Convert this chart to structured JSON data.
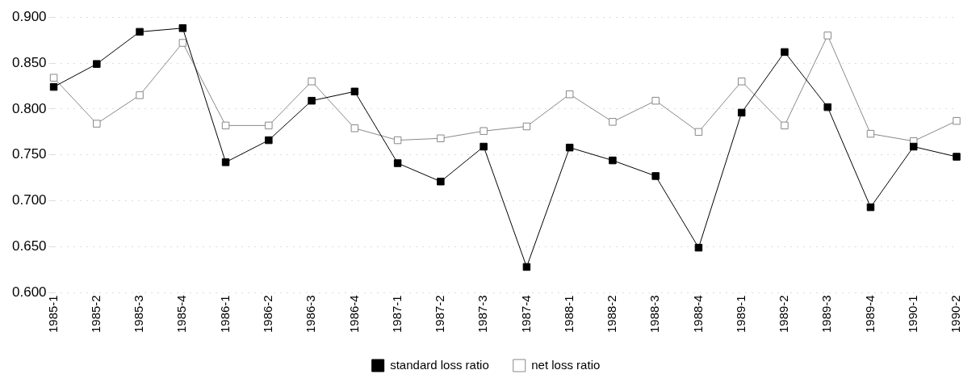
{
  "chart_data": {
    "type": "line",
    "categories": [
      "1985-1",
      "1985-2",
      "1985-3",
      "1985-4",
      "1986-1",
      "1986-2",
      "1986-3",
      "1986-4",
      "1987-1",
      "1987-2",
      "1987-3",
      "1987-4",
      "1988-1",
      "1988-2",
      "1988-3",
      "1988-4",
      "1989-1",
      "1989-2",
      "1989-3",
      "1989-4",
      "1990-1",
      "1990-2"
    ],
    "series": [
      {
        "name": "standard loss ratio",
        "color": "#000000",
        "values": [
          0.824,
          0.849,
          0.884,
          0.888,
          0.742,
          0.766,
          0.809,
          0.819,
          0.741,
          0.721,
          0.759,
          0.628,
          0.758,
          0.744,
          0.727,
          0.649,
          0.796,
          0.862,
          0.802,
          0.693,
          0.759,
          0.748
        ]
      },
      {
        "name": "net loss ratio",
        "color": "#888888",
        "values": [
          0.834,
          0.784,
          0.815,
          0.872,
          0.782,
          0.782,
          0.83,
          0.779,
          0.766,
          0.768,
          0.776,
          0.781,
          0.816,
          0.786,
          0.809,
          0.775,
          0.83,
          0.782,
          0.88,
          0.773,
          0.765,
          0.787
        ]
      }
    ],
    "ylim": [
      0.6,
      0.9
    ],
    "yticks": [
      {
        "value": 0.6,
        "label": "0.600"
      },
      {
        "value": 0.65,
        "label": "0.650"
      },
      {
        "value": 0.7,
        "label": "0.700"
      },
      {
        "value": 0.75,
        "label": "0.750"
      },
      {
        "value": 0.8,
        "label": "0.800"
      },
      {
        "value": 0.85,
        "label": "0.850"
      },
      {
        "value": 0.9,
        "label": "0.900"
      }
    ],
    "grid": "y",
    "legend": "bottom",
    "marker": "square",
    "line_style": "solid"
  }
}
